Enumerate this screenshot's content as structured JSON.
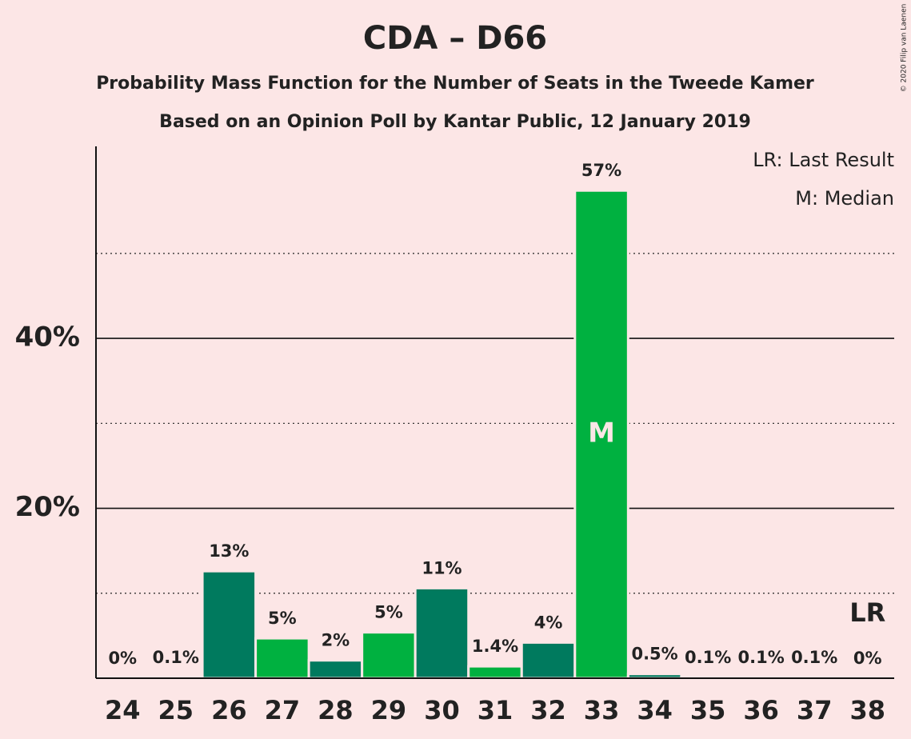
{
  "chart_data": {
    "type": "bar",
    "title": "CDA – D66",
    "subtitle": "Probability Mass Function for the Number of Seats in the Tweede Kamer",
    "subtitle2": "Based on an Opinion Poll by Kantar Public, 12 January 2019",
    "copyright": "© 2020 Filip van Laenen",
    "legend": [
      "LR: Last Result",
      "M: Median"
    ],
    "categories": [
      "24",
      "25",
      "26",
      "27",
      "28",
      "29",
      "30",
      "31",
      "32",
      "33",
      "34",
      "35",
      "36",
      "37",
      "38"
    ],
    "values": [
      0,
      0.1,
      12.6,
      4.7,
      2.1,
      5.4,
      10.6,
      1.4,
      4.2,
      57.4,
      0.5,
      0.1,
      0.1,
      0.1,
      0
    ],
    "value_labels": [
      "0%",
      "0.1%",
      "13%",
      "5%",
      "2%",
      "5%",
      "11%",
      "1.4%",
      "4%",
      "57%",
      "0.5%",
      "0.1%",
      "0.1%",
      "0.1%",
      "0%"
    ],
    "colors": [
      "#007a5e",
      "#00b140",
      "#007a5e",
      "#00b140",
      "#007a5e",
      "#00b140",
      "#007a5e",
      "#00b140",
      "#007a5e",
      "#00b140",
      "#007a5e",
      "#00b140",
      "#007a5e",
      "#00b140",
      "#007a5e"
    ],
    "median_category": "33",
    "median_marker": "M",
    "last_result_category": "38",
    "last_result_marker": "LR",
    "ylim": [
      0,
      62.6
    ],
    "yticks": [
      {
        "value": 20,
        "label": "20%"
      },
      {
        "value": 40,
        "label": "40%"
      }
    ],
    "minor_yticks": [
      10,
      30,
      50
    ],
    "grid": true
  }
}
